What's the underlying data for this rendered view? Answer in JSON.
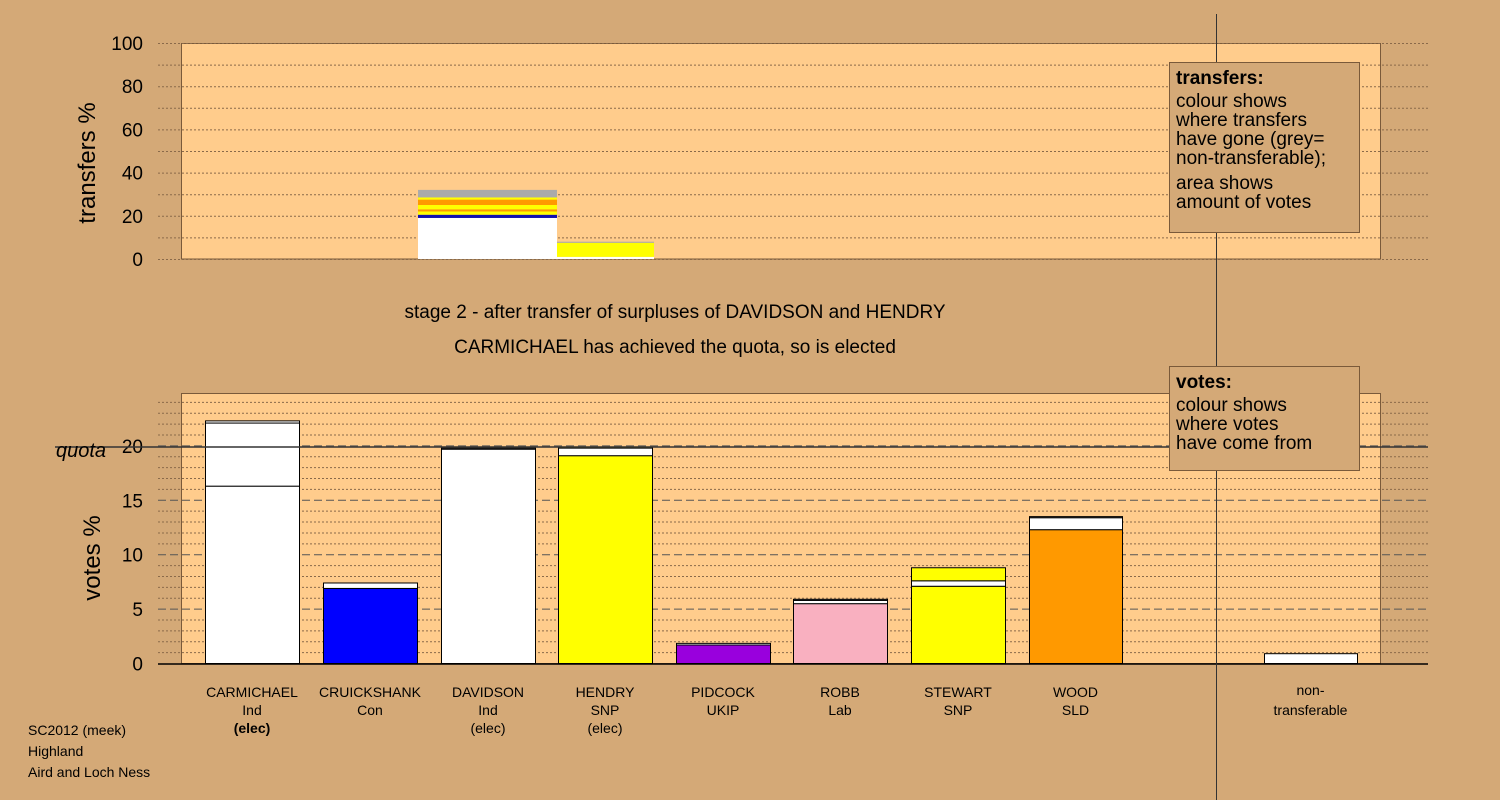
{
  "chart_data": [
    {
      "type": "bar",
      "stacked": true,
      "ylabel": "transfers %",
      "ylim": [
        0,
        100
      ],
      "yticks": [
        0,
        20,
        40,
        60,
        80,
        100
      ],
      "grid": true,
      "bars": [
        {
          "candidate": "DAVIDSON",
          "segments": [
            {
              "value": 19.0,
              "color": "#ffffff"
            },
            {
              "value": 1.5,
              "color": "#1010b0"
            },
            {
              "value": 1.5,
              "color": "#ffff00"
            },
            {
              "value": 1.0,
              "color": "#ff9900"
            },
            {
              "value": 2.0,
              "color": "#ffff00"
            },
            {
              "value": 2.5,
              "color": "#ff9900"
            },
            {
              "value": 1.0,
              "color": "#ffff00"
            },
            {
              "value": 3.5,
              "color": "#aaaaaa"
            }
          ]
        },
        {
          "candidate": "HENDRY",
          "segments": [
            {
              "value": 1.0,
              "color": "#ffffff"
            },
            {
              "value": 6.5,
              "color": "#ffff00"
            },
            {
              "value": 0.5,
              "color": "#aaaaaa"
            }
          ]
        }
      ]
    },
    {
      "type": "bar",
      "stacked": true,
      "ylabel": "votes %",
      "ylim": [
        0,
        25
      ],
      "yticks": [
        0,
        5,
        10,
        15,
        20
      ],
      "quota": 19.9,
      "quota_label": "quota",
      "grid": true,
      "candidates": [
        {
          "name": "CARMICHAEL",
          "party": "Ind",
          "status": "(elec)",
          "bold_status": true,
          "segments": [
            {
              "value": 16.3,
              "color": "#ffffff"
            },
            {
              "value": 5.8,
              "color": "#ffffff"
            },
            {
              "value": 0.2,
              "color": "#ffffff"
            }
          ]
        },
        {
          "name": "CRUICKSHANK",
          "party": "Con",
          "status": "",
          "bold_status": false,
          "segments": [
            {
              "value": 6.9,
              "color": "#0000ff"
            },
            {
              "value": 0.5,
              "color": "#ffffff"
            }
          ]
        },
        {
          "name": "DAVIDSON",
          "party": "Ind",
          "status": "(elec)",
          "bold_status": false,
          "segments": [
            {
              "value": 19.7,
              "color": "#ffffff"
            },
            {
              "value": 0.1,
              "color": "#ffffff"
            }
          ]
        },
        {
          "name": "HENDRY",
          "party": "SNP",
          "status": "(elec)",
          "bold_status": false,
          "segments": [
            {
              "value": 19.1,
              "color": "#ffff00"
            },
            {
              "value": 0.7,
              "color": "#ffffff"
            },
            {
              "value": 0.1,
              "color": "#ffff00"
            }
          ]
        },
        {
          "name": "PIDCOCK",
          "party": "UKIP",
          "status": "",
          "bold_status": false,
          "segments": [
            {
              "value": 1.7,
              "color": "#9900dd"
            },
            {
              "value": 0.15,
              "color": "#ffffff"
            }
          ]
        },
        {
          "name": "ROBB",
          "party": "Lab",
          "status": "",
          "bold_status": false,
          "segments": [
            {
              "value": 5.5,
              "color": "#f9b0c0"
            },
            {
              "value": 0.3,
              "color": "#ffffff"
            },
            {
              "value": 0.1,
              "color": "#ffffff"
            }
          ]
        },
        {
          "name": "STEWART",
          "party": "SNP",
          "status": "",
          "bold_status": false,
          "segments": [
            {
              "value": 7.1,
              "color": "#ffff00"
            },
            {
              "value": 0.5,
              "color": "#ffffff"
            },
            {
              "value": 1.2,
              "color": "#ffff00"
            }
          ]
        },
        {
          "name": "WOOD",
          "party": "SLD",
          "status": "",
          "bold_status": false,
          "segments": [
            {
              "value": 12.3,
              "color": "#ff9900"
            },
            {
              "value": 1.1,
              "color": "#ffffff"
            },
            {
              "value": 0.1,
              "color": "#ffffff"
            }
          ]
        }
      ],
      "nontransferable": {
        "label_line1": "non-",
        "label_line2": "transferable",
        "value": 0.9,
        "color": "#ffffff"
      }
    }
  ],
  "titles": {
    "stage": "stage 2 - after transfer of surpluses of DAVIDSON and HENDRY",
    "status": "CARMICHAEL has achieved the quota, so is elected"
  },
  "legend_transfers": {
    "title": "transfers:",
    "line1": "colour shows",
    "line2": "where transfers",
    "line3": "have gone (grey=",
    "line4": "non-transferable);",
    "line5": "area shows",
    "line6": "amount of votes"
  },
  "legend_votes": {
    "title": "votes:",
    "line1": "colour shows",
    "line2": "where votes",
    "line3": "have come from"
  },
  "footer": {
    "line1": "SC2012 (meek)",
    "line2": "Highland",
    "line3": "Aird and Loch Ness"
  },
  "colors": {
    "background": "#d4a977",
    "plot_area": "#ffcc8c",
    "grey_nontransferable": "#aaaaaa"
  }
}
